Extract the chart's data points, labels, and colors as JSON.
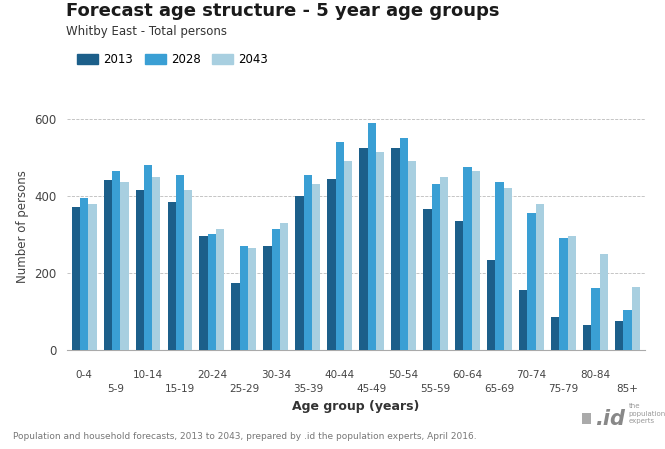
{
  "title": "Forecast age structure - 5 year age groups",
  "subtitle": "Whitby East - Total persons",
  "xlabel": "Age group (years)",
  "ylabel": "Number of persons",
  "footnote": "Population and household forecasts, 2013 to 2043, prepared by .id the population experts, April 2016.",
  "legend_labels": [
    "2013",
    "2028",
    "2043"
  ],
  "colors": [
    "#1c5f8a",
    "#3a9fd4",
    "#a8cfe0"
  ],
  "age_groups": [
    "0-4",
    "5-9",
    "10-14",
    "15-19",
    "20-24",
    "25-29",
    "30-34",
    "35-39",
    "40-44",
    "45-49",
    "50-54",
    "55-59",
    "60-64",
    "65-69",
    "70-74",
    "75-79",
    "80-84",
    "85+"
  ],
  "data_2013": [
    370,
    440,
    415,
    385,
    295,
    175,
    270,
    400,
    445,
    525,
    525,
    365,
    335,
    235,
    155,
    85,
    65,
    75
  ],
  "data_2028": [
    395,
    465,
    480,
    455,
    300,
    270,
    315,
    455,
    540,
    590,
    550,
    430,
    475,
    435,
    355,
    290,
    160,
    105
  ],
  "data_2043": [
    380,
    435,
    450,
    415,
    315,
    265,
    330,
    430,
    490,
    515,
    490,
    450,
    465,
    420,
    380,
    295,
    250,
    165
  ],
  "ylim": [
    0,
    640
  ],
  "yticks": [
    0,
    200,
    400,
    600
  ],
  "background_color": "#ffffff",
  "grid_color": "#bbbbbb"
}
